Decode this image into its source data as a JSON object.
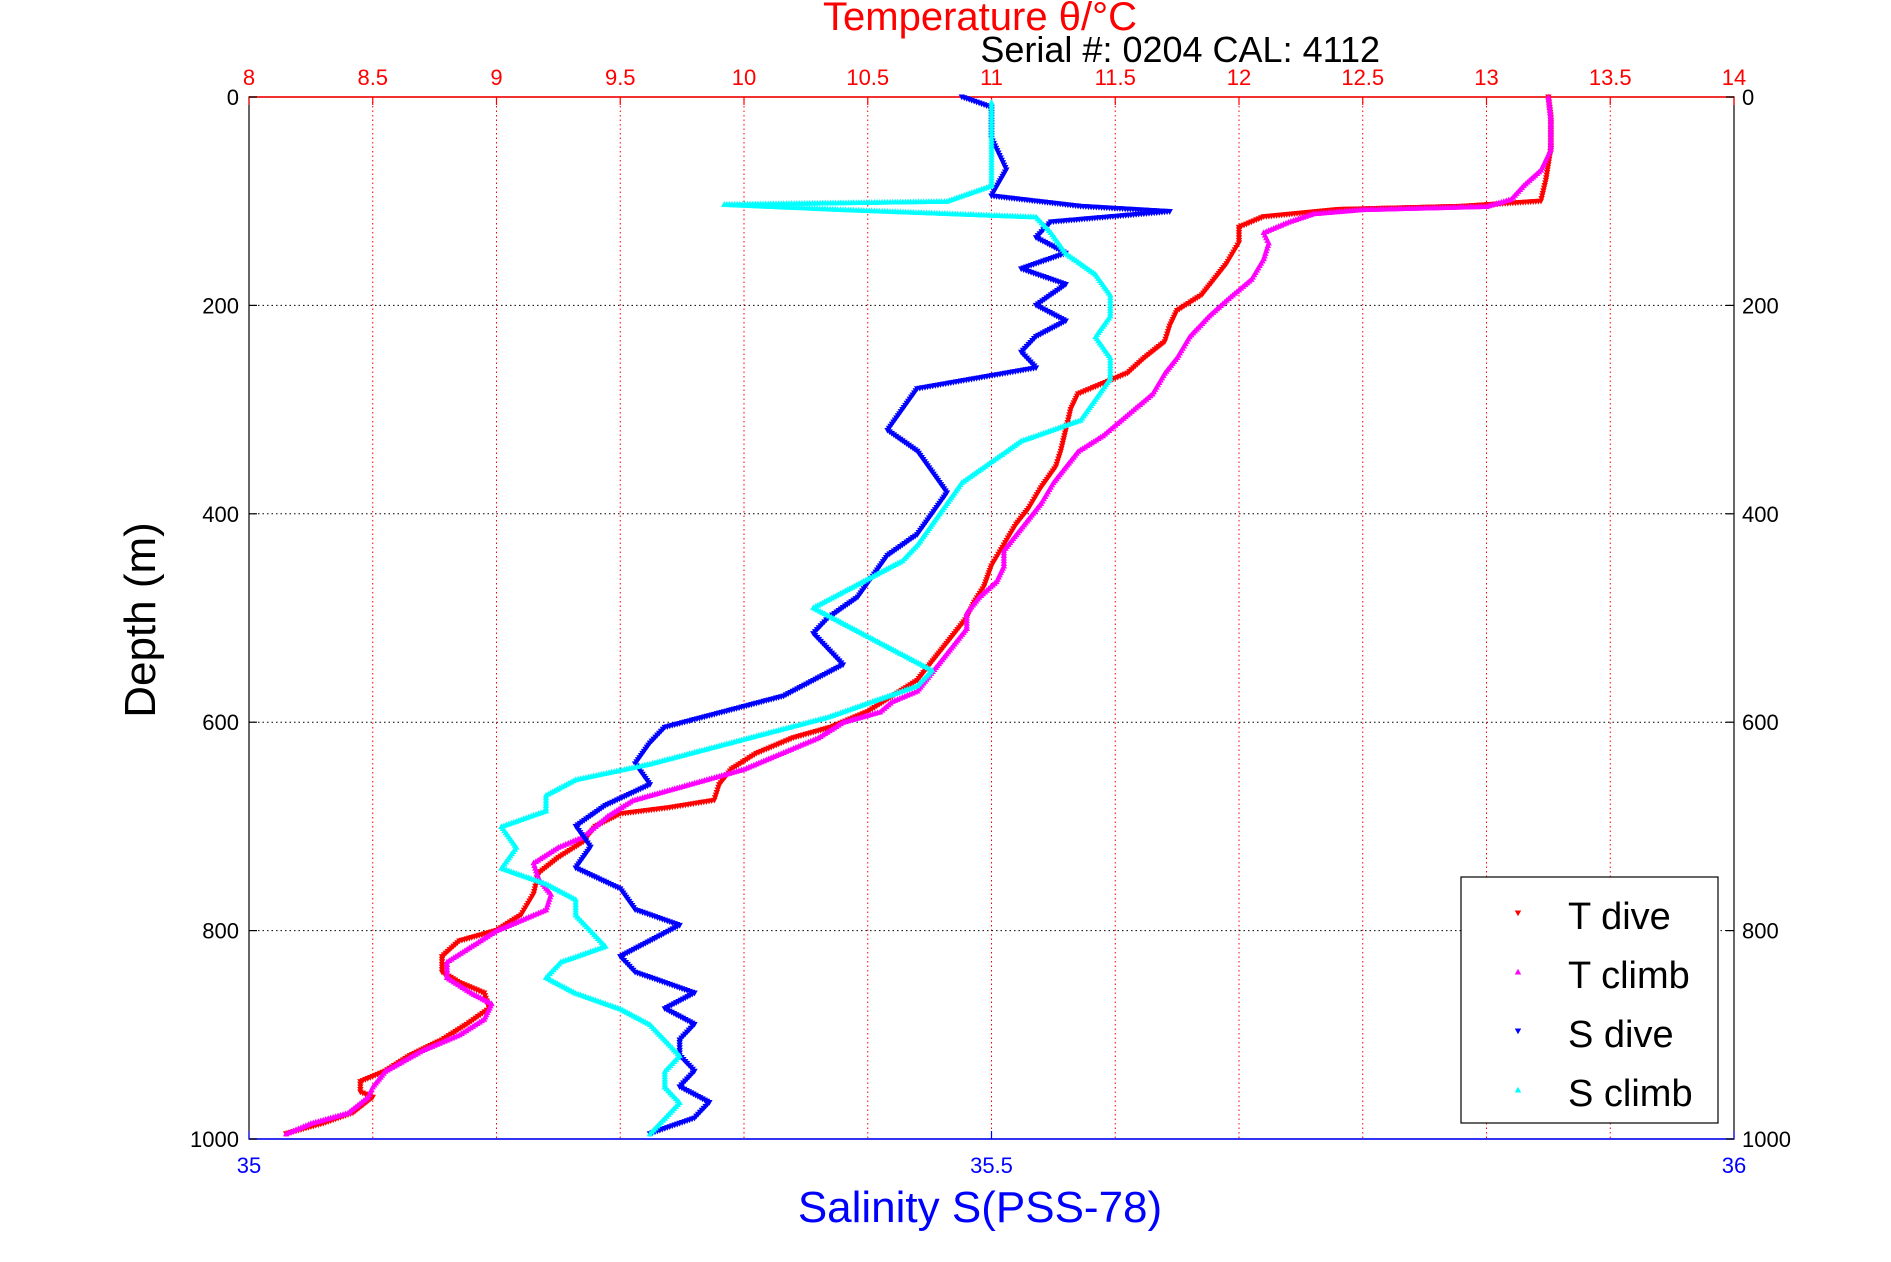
{
  "chart_data": {
    "type": "scatter",
    "title": "Temperature θ/°C",
    "subtitle": "Serial #: 0204  CAL: 4112",
    "ylabel": "Depth (m)",
    "xlabel_bottom": "Salinity S(PSS-78)",
    "y_reversed": true,
    "ylim": [
      0,
      1000
    ],
    "x_top": {
      "label": "Temperature θ/°C",
      "range": [
        8,
        14
      ],
      "ticks": [
        8,
        8.5,
        9,
        9.5,
        10,
        10.5,
        11,
        11.5,
        12,
        12.5,
        13,
        13.5,
        14
      ],
      "color": "#ff0000"
    },
    "x_bottom": {
      "label": "Salinity S(PSS-78)",
      "range": [
        35,
        36
      ],
      "ticks": [
        35,
        35.5,
        36
      ],
      "color": "#0000ff"
    },
    "y_ticks": [
      0,
      200,
      400,
      600,
      800,
      1000
    ],
    "grid": true,
    "legend_position": "bottom-right",
    "series": [
      {
        "name": "T dive",
        "axis": "top",
        "color": "#ff0000",
        "marker": "triangle-down",
        "points": [
          [
            13.25,
            0
          ],
          [
            13.26,
            20
          ],
          [
            13.26,
            50
          ],
          [
            13.24,
            80
          ],
          [
            13.22,
            100
          ],
          [
            12.9,
            105
          ],
          [
            12.4,
            108
          ],
          [
            12.1,
            115
          ],
          [
            12.0,
            125
          ],
          [
            12.0,
            140
          ],
          [
            11.95,
            160
          ],
          [
            11.9,
            175
          ],
          [
            11.85,
            190
          ],
          [
            11.75,
            205
          ],
          [
            11.72,
            220
          ],
          [
            11.7,
            235
          ],
          [
            11.62,
            250
          ],
          [
            11.55,
            265
          ],
          [
            11.45,
            275
          ],
          [
            11.35,
            285
          ],
          [
            11.32,
            300
          ],
          [
            11.3,
            320
          ],
          [
            11.28,
            340
          ],
          [
            11.26,
            355
          ],
          [
            11.2,
            375
          ],
          [
            11.15,
            395
          ],
          [
            11.1,
            410
          ],
          [
            11.05,
            430
          ],
          [
            11.0,
            450
          ],
          [
            10.97,
            470
          ],
          [
            10.93,
            485
          ],
          [
            10.9,
            500
          ],
          [
            10.85,
            515
          ],
          [
            10.8,
            530
          ],
          [
            10.75,
            545
          ],
          [
            10.7,
            560
          ],
          [
            10.6,
            575
          ],
          [
            10.5,
            590
          ],
          [
            10.35,
            605
          ],
          [
            10.2,
            615
          ],
          [
            10.05,
            630
          ],
          [
            9.95,
            645
          ],
          [
            9.9,
            660
          ],
          [
            9.88,
            675
          ],
          [
            9.7,
            682
          ],
          [
            9.5,
            688
          ],
          [
            9.4,
            700
          ],
          [
            9.35,
            715
          ],
          [
            9.25,
            730
          ],
          [
            9.17,
            745
          ],
          [
            9.15,
            765
          ],
          [
            9.1,
            785
          ],
          [
            9.0,
            800
          ],
          [
            8.85,
            810
          ],
          [
            8.78,
            825
          ],
          [
            8.78,
            840
          ],
          [
            8.85,
            850
          ],
          [
            8.95,
            860
          ],
          [
            8.97,
            875
          ],
          [
            8.88,
            890
          ],
          [
            8.78,
            905
          ],
          [
            8.65,
            920
          ],
          [
            8.55,
            935
          ],
          [
            8.45,
            945
          ],
          [
            8.45,
            955
          ],
          [
            8.5,
            960
          ],
          [
            8.42,
            975
          ],
          [
            8.3,
            985
          ],
          [
            8.15,
            995
          ]
        ]
      },
      {
        "name": "T climb",
        "axis": "top",
        "color": "#ff00ff",
        "marker": "triangle-up",
        "points": [
          [
            8.15,
            995
          ],
          [
            8.25,
            985
          ],
          [
            8.4,
            975
          ],
          [
            8.48,
            960
          ],
          [
            8.5,
            950
          ],
          [
            8.55,
            935
          ],
          [
            8.7,
            915
          ],
          [
            8.85,
            900
          ],
          [
            8.95,
            885
          ],
          [
            8.98,
            870
          ],
          [
            8.9,
            860
          ],
          [
            8.8,
            845
          ],
          [
            8.8,
            830
          ],
          [
            8.9,
            815
          ],
          [
            9.0,
            800
          ],
          [
            9.1,
            790
          ],
          [
            9.2,
            780
          ],
          [
            9.22,
            765
          ],
          [
            9.17,
            750
          ],
          [
            9.15,
            735
          ],
          [
            9.25,
            720
          ],
          [
            9.35,
            710
          ],
          [
            9.45,
            690
          ],
          [
            9.55,
            675
          ],
          [
            9.7,
            665
          ],
          [
            9.85,
            655
          ],
          [
            10.0,
            645
          ],
          [
            10.15,
            630
          ],
          [
            10.3,
            615
          ],
          [
            10.4,
            600
          ],
          [
            10.55,
            590
          ],
          [
            10.6,
            580
          ],
          [
            10.7,
            570
          ],
          [
            10.75,
            555
          ],
          [
            10.8,
            540
          ],
          [
            10.85,
            525
          ],
          [
            10.9,
            510
          ],
          [
            10.9,
            495
          ],
          [
            10.95,
            480
          ],
          [
            11.02,
            465
          ],
          [
            11.05,
            450
          ],
          [
            11.05,
            435
          ],
          [
            11.1,
            420
          ],
          [
            11.15,
            405
          ],
          [
            11.2,
            390
          ],
          [
            11.25,
            370
          ],
          [
            11.3,
            355
          ],
          [
            11.35,
            340
          ],
          [
            11.45,
            325
          ],
          [
            11.55,
            305
          ],
          [
            11.65,
            285
          ],
          [
            11.7,
            265
          ],
          [
            11.75,
            250
          ],
          [
            11.8,
            230
          ],
          [
            11.88,
            210
          ],
          [
            11.95,
            195
          ],
          [
            12.05,
            175
          ],
          [
            12.1,
            155
          ],
          [
            12.12,
            140
          ],
          [
            12.1,
            130
          ],
          [
            12.2,
            120
          ],
          [
            12.3,
            112
          ],
          [
            12.5,
            108
          ],
          [
            13.0,
            105
          ],
          [
            13.1,
            98
          ],
          [
            13.15,
            85
          ],
          [
            13.22,
            70
          ],
          [
            13.26,
            50
          ],
          [
            13.26,
            20
          ],
          [
            13.25,
            0
          ]
        ]
      },
      {
        "name": "S dive",
        "axis": "bottom",
        "color": "#0000ff",
        "marker": "triangle-down",
        "points": [
          [
            35.48,
            0
          ],
          [
            35.5,
            10
          ],
          [
            35.5,
            40
          ],
          [
            35.51,
            70
          ],
          [
            35.5,
            95
          ],
          [
            35.56,
            105
          ],
          [
            35.62,
            110
          ],
          [
            35.54,
            120
          ],
          [
            35.53,
            135
          ],
          [
            35.55,
            150
          ],
          [
            35.52,
            165
          ],
          [
            35.55,
            180
          ],
          [
            35.53,
            200
          ],
          [
            35.55,
            215
          ],
          [
            35.53,
            230
          ],
          [
            35.52,
            245
          ],
          [
            35.53,
            260
          ],
          [
            35.45,
            280
          ],
          [
            35.44,
            300
          ],
          [
            35.43,
            320
          ],
          [
            35.45,
            340
          ],
          [
            35.46,
            360
          ],
          [
            35.47,
            380
          ],
          [
            35.46,
            400
          ],
          [
            35.45,
            420
          ],
          [
            35.43,
            440
          ],
          [
            35.42,
            460
          ],
          [
            35.41,
            480
          ],
          [
            35.39,
            500
          ],
          [
            35.38,
            515
          ],
          [
            35.39,
            530
          ],
          [
            35.4,
            545
          ],
          [
            35.38,
            560
          ],
          [
            35.36,
            575
          ],
          [
            35.32,
            590
          ],
          [
            35.28,
            605
          ],
          [
            35.27,
            620
          ],
          [
            35.26,
            640
          ],
          [
            35.27,
            660
          ],
          [
            35.24,
            680
          ],
          [
            35.22,
            700
          ],
          [
            35.23,
            720
          ],
          [
            35.22,
            740
          ],
          [
            35.25,
            760
          ],
          [
            35.26,
            780
          ],
          [
            35.29,
            795
          ],
          [
            35.27,
            810
          ],
          [
            35.25,
            825
          ],
          [
            35.26,
            840
          ],
          [
            35.3,
            860
          ],
          [
            35.28,
            875
          ],
          [
            35.3,
            890
          ],
          [
            35.29,
            905
          ],
          [
            35.29,
            920
          ],
          [
            35.3,
            935
          ],
          [
            35.29,
            950
          ],
          [
            35.31,
            965
          ],
          [
            35.3,
            980
          ],
          [
            35.27,
            995
          ]
        ]
      },
      {
        "name": "S climb",
        "axis": "bottom",
        "color": "#00ffff",
        "marker": "triangle-up",
        "points": [
          [
            35.27,
            995
          ],
          [
            35.28,
            980
          ],
          [
            35.29,
            965
          ],
          [
            35.28,
            950
          ],
          [
            35.28,
            935
          ],
          [
            35.29,
            920
          ],
          [
            35.28,
            905
          ],
          [
            35.27,
            890
          ],
          [
            35.25,
            875
          ],
          [
            35.22,
            860
          ],
          [
            35.2,
            845
          ],
          [
            35.21,
            830
          ],
          [
            35.24,
            815
          ],
          [
            35.23,
            800
          ],
          [
            35.22,
            785
          ],
          [
            35.22,
            770
          ],
          [
            35.2,
            755
          ],
          [
            35.17,
            740
          ],
          [
            35.18,
            720
          ],
          [
            35.17,
            700
          ],
          [
            35.2,
            685
          ],
          [
            35.2,
            670
          ],
          [
            35.22,
            655
          ],
          [
            35.27,
            640
          ],
          [
            35.31,
            625
          ],
          [
            35.35,
            610
          ],
          [
            35.39,
            595
          ],
          [
            35.42,
            580
          ],
          [
            35.45,
            565
          ],
          [
            35.46,
            550
          ],
          [
            35.44,
            535
          ],
          [
            35.42,
            520
          ],
          [
            35.4,
            505
          ],
          [
            35.38,
            490
          ],
          [
            35.4,
            475
          ],
          [
            35.42,
            460
          ],
          [
            35.44,
            445
          ],
          [
            35.45,
            430
          ],
          [
            35.46,
            410
          ],
          [
            35.47,
            390
          ],
          [
            35.48,
            370
          ],
          [
            35.5,
            350
          ],
          [
            35.52,
            330
          ],
          [
            35.56,
            310
          ],
          [
            35.57,
            290
          ],
          [
            35.58,
            270
          ],
          [
            35.58,
            250
          ],
          [
            35.57,
            230
          ],
          [
            35.58,
            210
          ],
          [
            35.58,
            190
          ],
          [
            35.57,
            170
          ],
          [
            35.55,
            150
          ],
          [
            35.54,
            130
          ],
          [
            35.53,
            115
          ],
          [
            35.4,
            108
          ],
          [
            35.32,
            103
          ],
          [
            35.47,
            100
          ],
          [
            35.5,
            85
          ],
          [
            35.5,
            60
          ],
          [
            35.5,
            30
          ],
          [
            35.5,
            5
          ]
        ]
      }
    ]
  }
}
